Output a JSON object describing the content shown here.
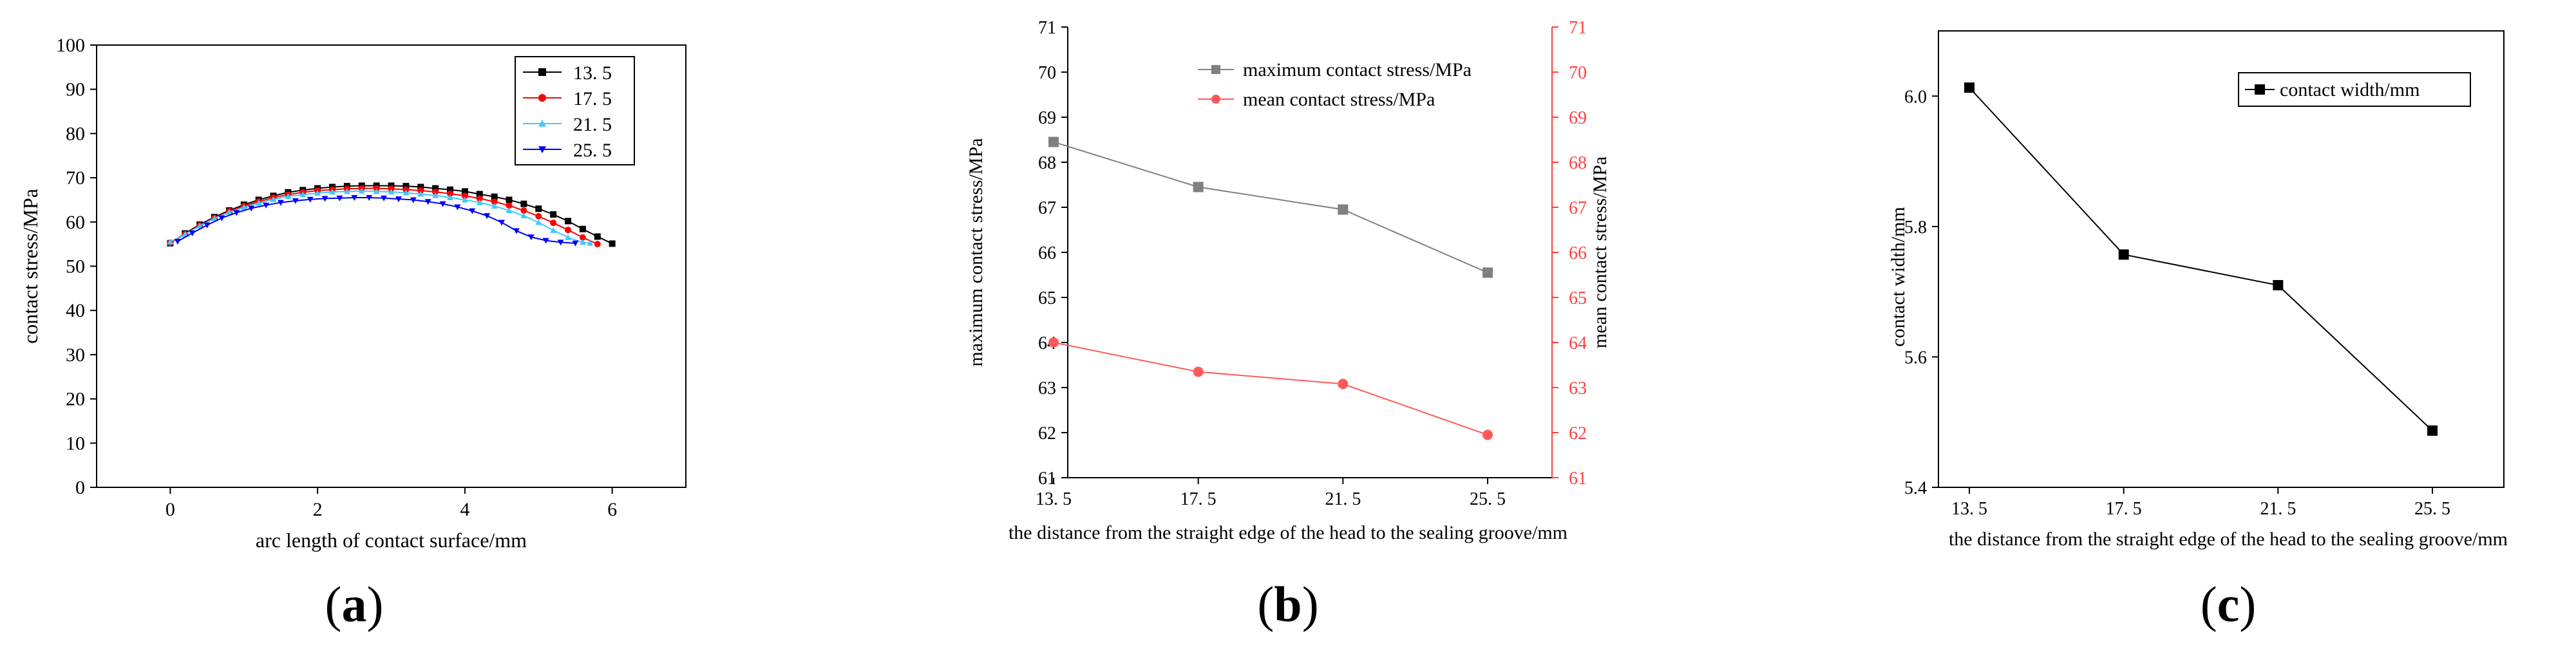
{
  "colors": {
    "black": "#000000",
    "red": "#ff0000",
    "green": "#00aa00",
    "cyan": "#40c8ff",
    "blue": "#0000ff",
    "gray_series": "#808080",
    "red_series": "#ff5a5a",
    "red_axis": "#ff4040",
    "frame": "#000000"
  },
  "panels": {
    "a": {
      "caption_open": "(",
      "caption_letter": "a",
      "caption_close": ")"
    },
    "b": {
      "caption_open": "(",
      "caption_letter": "b",
      "caption_close": ")"
    },
    "c": {
      "caption_open": "(",
      "caption_letter": "c",
      "caption_close": ")"
    }
  },
  "chart_data": [
    {
      "id": "a",
      "type": "line",
      "title": "",
      "xlabel": "arc length of contact surface/mm",
      "ylabel": "contact stress/MPa",
      "xlim": [
        -1,
        7
      ],
      "ylim": [
        0,
        100
      ],
      "xticks": [
        0,
        2,
        4,
        6
      ],
      "yticks": [
        0,
        10,
        20,
        30,
        40,
        50,
        60,
        70,
        80,
        90,
        100
      ],
      "legend": "top-right",
      "series": [
        {
          "name": "13. 5",
          "marker": "square",
          "color": "#000000",
          "x": [
            0,
            0.2,
            0.4,
            0.6,
            0.8,
            1,
            1.2,
            1.4,
            1.6,
            1.8,
            2,
            2.2,
            2.4,
            2.6,
            2.8,
            3,
            3.2,
            3.4,
            3.6,
            3.8,
            4,
            4.2,
            4.4,
            4.6,
            4.8,
            5,
            5.2,
            5.4,
            5.6,
            5.8,
            6
          ],
          "y": [
            55.2,
            57.4,
            59.4,
            61.1,
            62.6,
            63.9,
            65,
            65.9,
            66.7,
            67.2,
            67.6,
            67.9,
            68.1,
            68.2,
            68.2,
            68.2,
            68.1,
            67.9,
            67.6,
            67.3,
            66.9,
            66.3,
            65.7,
            65,
            64.1,
            63,
            61.7,
            60.2,
            58.4,
            56.7,
            55.1
          ]
        },
        {
          "name": "17. 5",
          "marker": "circle",
          "color": "#ff0000",
          "x": [
            0,
            0.2,
            0.4,
            0.6,
            0.8,
            1,
            1.2,
            1.4,
            1.6,
            1.8,
            2,
            2.2,
            2.4,
            2.6,
            2.8,
            3,
            3.2,
            3.4,
            3.6,
            3.8,
            4,
            4.2,
            4.4,
            4.6,
            4.8,
            5,
            5.2,
            5.4,
            5.6,
            5.8
          ],
          "y": [
            55.3,
            57.2,
            59.2,
            60.9,
            62.4,
            63.6,
            64.6,
            65.5,
            66.2,
            66.7,
            67.1,
            67.3,
            67.5,
            67.6,
            67.6,
            67.5,
            67.3,
            67.1,
            66.8,
            66.4,
            65.9,
            65.3,
            64.6,
            63.7,
            62.6,
            61.3,
            59.8,
            58.2,
            56.5,
            55
          ]
        },
        {
          "name": "21. 5",
          "marker": "triangle-up",
          "color": "#40c8ff",
          "x": [
            0,
            0.2,
            0.4,
            0.6,
            0.8,
            1,
            1.2,
            1.4,
            1.6,
            1.8,
            2,
            2.2,
            2.4,
            2.6,
            2.8,
            3,
            3.2,
            3.4,
            3.6,
            3.8,
            4,
            4.2,
            4.4,
            4.6,
            4.8,
            5,
            5.2,
            5.4,
            5.6,
            5.7
          ],
          "y": [
            55.5,
            57.2,
            59.1,
            60.8,
            62.2,
            63.3,
            64.3,
            65.1,
            65.8,
            66.2,
            66.5,
            66.8,
            66.9,
            67,
            66.9,
            66.8,
            66.6,
            66.3,
            66,
            65.5,
            65,
            64.4,
            63.6,
            62.6,
            61.4,
            59.9,
            58.1,
            56.5,
            55.4,
            55.2
          ]
        },
        {
          "name": "25. 5",
          "marker": "triangle-down",
          "color": "#0000ff",
          "x": [
            0.1,
            0.3,
            0.5,
            0.7,
            0.9,
            1.1,
            1.3,
            1.5,
            1.7,
            1.9,
            2.1,
            2.3,
            2.5,
            2.7,
            2.9,
            3.1,
            3.3,
            3.5,
            3.7,
            3.9,
            4.1,
            4.3,
            4.5,
            4.7,
            4.9,
            5.1,
            5.3,
            5.5
          ],
          "y": [
            55.6,
            57.5,
            59.3,
            60.9,
            62.1,
            63.1,
            63.8,
            64.4,
            64.8,
            65.1,
            65.3,
            65.4,
            65.5,
            65.5,
            65.4,
            65.2,
            65,
            64.6,
            64.1,
            63.4,
            62.5,
            61.4,
            59.9,
            58,
            56.6,
            55.8,
            55.4,
            55.2
          ]
        }
      ]
    },
    {
      "id": "b",
      "type": "line",
      "title": "",
      "xlabel": "the distance from the straight edge of the head to the sealing groove/mm",
      "ylabel": "maximum contact stress/MPa",
      "ylabel_right": "mean contact stress/MPa",
      "categories": [
        "13. 5",
        "17. 5",
        "21. 5",
        "25. 5"
      ],
      "ylim": [
        61,
        71
      ],
      "ylim_right": [
        61,
        71
      ],
      "yticks": [
        61,
        62,
        63,
        64,
        65,
        66,
        67,
        68,
        69,
        70,
        71
      ],
      "legend": "top-right",
      "series": [
        {
          "name": "maximum contact stress/MPa",
          "marker": "square",
          "color": "#808080",
          "axis": "left",
          "values": [
            68.45,
            67.45,
            66.95,
            65.55
          ]
        },
        {
          "name": "mean contact stress/MPa",
          "marker": "circle",
          "color": "#ff5a5a",
          "axis": "right",
          "values": [
            64.0,
            63.35,
            63.08,
            61.95
          ]
        }
      ]
    },
    {
      "id": "c",
      "type": "line",
      "title": "",
      "xlabel": "the distance from the straight edge of the head to the sealing groove/mm",
      "ylabel": "contact width/mm",
      "categories": [
        "13. 5",
        "17. 5",
        "21. 5",
        "25. 5"
      ],
      "ylim": [
        5.4,
        6.1
      ],
      "yticks": [
        "5.4",
        "5.6",
        "5.8",
        "6.0"
      ],
      "legend": "top-right",
      "series": [
        {
          "name": "contact width/mm",
          "marker": "square",
          "color": "#000000",
          "values": [
            6.013,
            5.757,
            5.71,
            5.487
          ]
        }
      ]
    }
  ]
}
